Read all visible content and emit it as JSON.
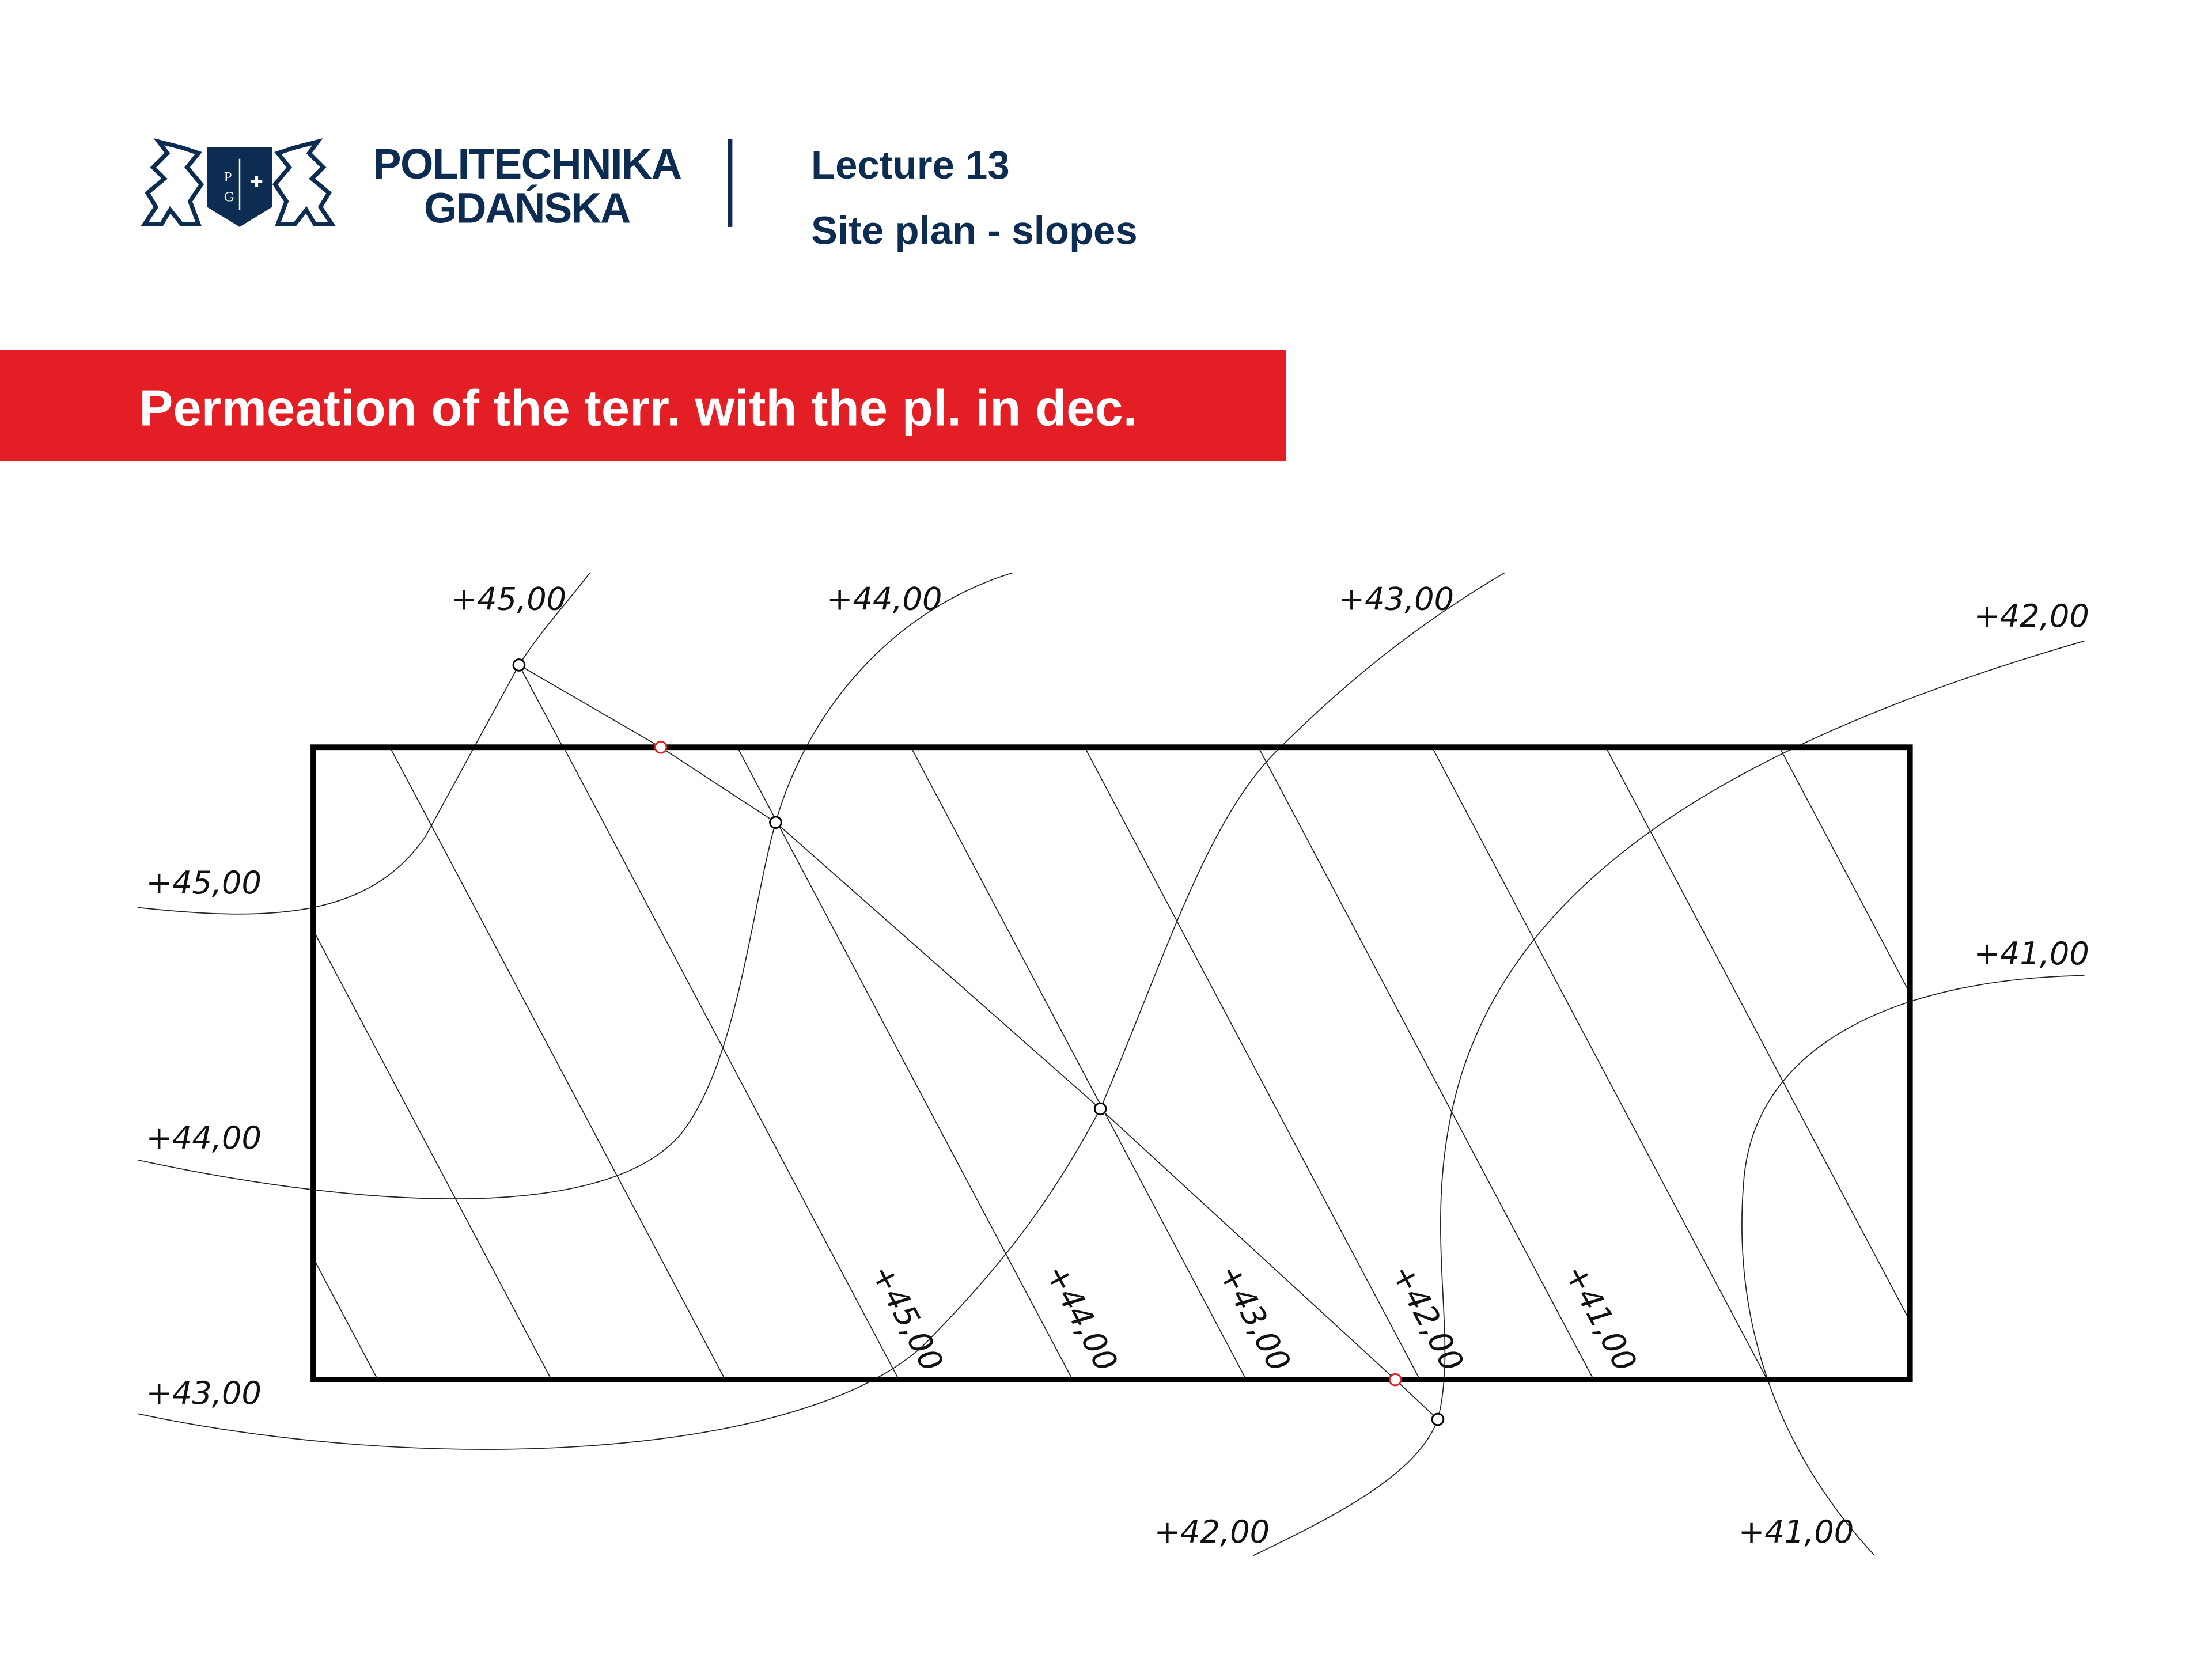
{
  "header": {
    "logo_text": [
      "POLITECHNIKA",
      "GDAŃSKA"
    ],
    "logo_shield_letters": [
      "P",
      "G"
    ],
    "lecture": "Lecture 13",
    "topic": "Site plan - slopes"
  },
  "banner": {
    "title": "Permeation of the terr. with the pl. in dec.",
    "color": "#e31e24"
  },
  "drawing": {
    "terrain_contour_labels": {
      "top_45": "+45,00",
      "top_44": "+44,00",
      "top_43": "+43,00",
      "right_42": "+42,00",
      "left_45": "+45,00",
      "left_44": "+44,00",
      "left_43": "+43,00",
      "right_41": "+41,00",
      "bottom_42": "+42,00",
      "bottom_41": "+41,00"
    },
    "plane_contour_labels": [
      "+45,00",
      "+44,00",
      "+43,00",
      "+42,00",
      "+41,00"
    ],
    "intersection_point_color": "#e31e24"
  }
}
